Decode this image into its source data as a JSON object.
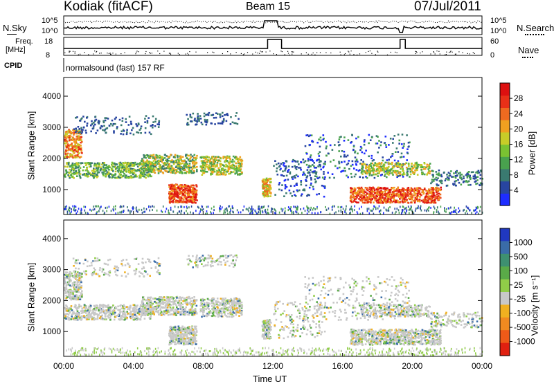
{
  "header": {
    "title": "Kodiak (fitACF)",
    "beam": "Beam 15",
    "date": "07/Jul/2011"
  },
  "top_panels": {
    "nsky_label": "N.Sky",
    "nsearch_label": "N.Search",
    "noise_left_ticks": [
      "10^5",
      "10^0"
    ],
    "noise_right_ticks": [
      "10^5",
      "10^0"
    ],
    "freq_label_1": "Freq.",
    "freq_label_2": "[MHz]",
    "freq_ticks": [
      "18",
      "8"
    ],
    "nave_label": "Nave",
    "nave_ticks": [
      "60",
      "0"
    ],
    "cpid_label": "CPID",
    "cpid_value": "normalsound (fast) 157 RF"
  },
  "chart_data": [
    {
      "type": "heatmap",
      "name": "power-panel",
      "ylabel": "Slant Range [km]",
      "y_ticks": [
        1000,
        2000,
        3000,
        4000
      ],
      "ylim": [
        200,
        4600
      ],
      "colorbar_label": "Power [dB]",
      "colorbar_ticks": [
        "4",
        "8",
        "12",
        "16",
        "20",
        "24",
        "28"
      ],
      "colorbar_colors": [
        "#1e2dff",
        "#2845a0",
        "#3a7a70",
        "#49a24e",
        "#7ac232",
        "#c8cc28",
        "#f0a020",
        "#ee6a20",
        "#e83018",
        "#dd1010"
      ]
    },
    {
      "type": "heatmap",
      "name": "velocity-panel",
      "ylabel": "Slant Range [km]",
      "y_ticks": [
        1000,
        2000,
        3000,
        4000
      ],
      "ylim": [
        200,
        4600
      ],
      "colorbar_label": "Velocity [m s⁻¹]",
      "colorbar_ticks": [
        "1000",
        "500",
        "100",
        "25",
        "-25",
        "-100",
        "-500",
        "-1000"
      ],
      "colorbar_colors": [
        "#2038c0",
        "#3a6ca8",
        "#3e9070",
        "#5aaa48",
        "#90cc48",
        "#c8c8c8",
        "#f0b020",
        "#f08a20",
        "#ee5a18",
        "#e02010"
      ]
    }
  ],
  "x_axis": {
    "label": "Time UT",
    "ticks": [
      "00:00",
      "04:00",
      "08:00",
      "12:00",
      "16:00",
      "20:00",
      "00:00"
    ]
  }
}
